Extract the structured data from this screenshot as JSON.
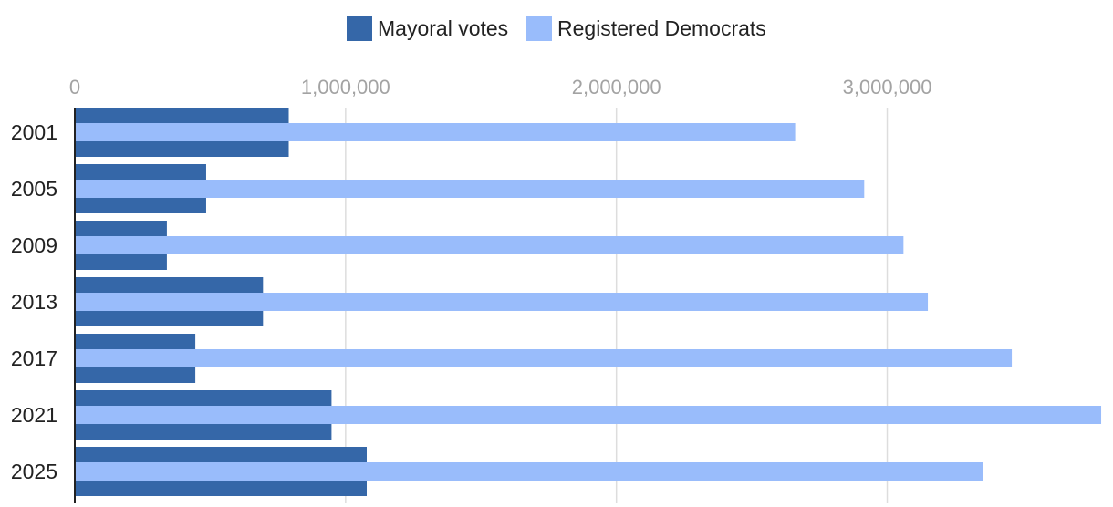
{
  "chart_data": {
    "type": "bar",
    "orientation": "horizontal",
    "categories": [
      "2001",
      "2005",
      "2009",
      "2013",
      "2017",
      "2021",
      "2025"
    ],
    "series": [
      {
        "name": "Mayoral votes",
        "color": "#3567a8",
        "values": [
          790000,
          485000,
          340000,
          695000,
          445000,
          948000,
          1078000
        ]
      },
      {
        "name": "Registered Democrats",
        "color": "#99bcfb",
        "values": [
          2660000,
          2915000,
          3060000,
          3150000,
          3460000,
          3790000,
          3355000
        ]
      }
    ],
    "xlim": [
      0,
      3800000
    ],
    "xticks": [
      0,
      1000000,
      2000000,
      3000000
    ],
    "xtick_labels": [
      "0",
      "1,000,000",
      "2,000,000",
      "3,000,000"
    ],
    "grid": true,
    "legend_position": "top-center",
    "title": "",
    "xlabel": "",
    "ylabel": ""
  }
}
